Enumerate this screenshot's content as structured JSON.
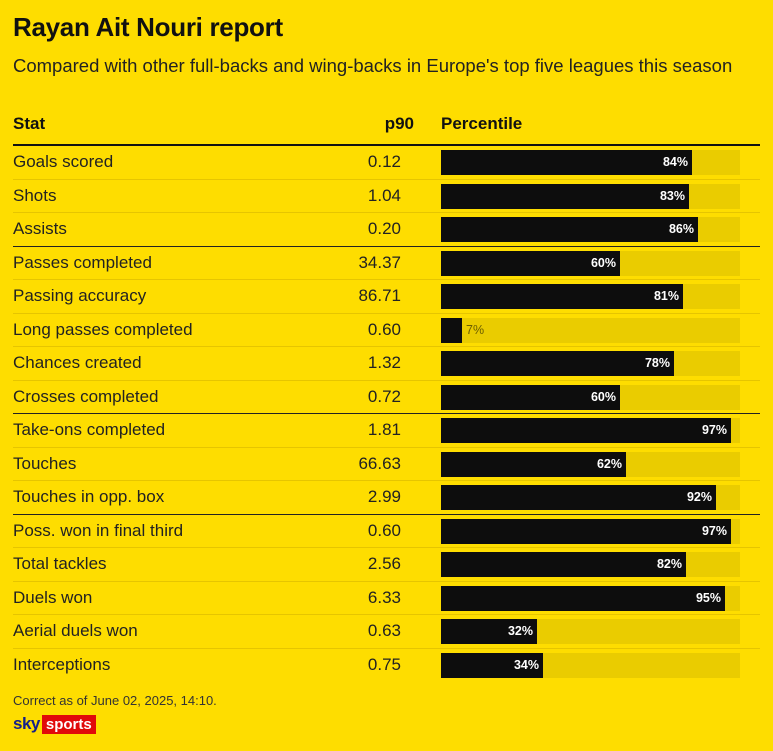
{
  "title": "Rayan Ait Nouri report",
  "subtitle": "Compared with other full-backs and wing-backs in Europe's top five leagues this season",
  "headers": {
    "stat": "Stat",
    "p90": "p90",
    "percentile": "Percentile"
  },
  "footnote": "Correct as of June 02, 2025, 14:10.",
  "logo": {
    "sky": "sky",
    "sports": "sports"
  },
  "colors": {
    "background": "#FEDD00",
    "bar": "#0d0d0d",
    "track": "#EACC00",
    "logo_red": "#e10a0a",
    "logo_blue": "#14208a"
  },
  "chart_data": {
    "type": "bar",
    "orientation": "horizontal",
    "title": "Rayan Ait Nouri report",
    "subtitle": "Compared with other full-backs and wing-backs in Europe's top five leagues this season",
    "xlim": [
      0,
      100
    ],
    "categories": [
      "Goals scored",
      "Shots",
      "Assists",
      "Passes completed",
      "Passing accuracy",
      "Long passes completed",
      "Chances created",
      "Crosses completed",
      "Take-ons completed",
      "Touches",
      "Touches in opp. box",
      "Poss. won in final third",
      "Total tackles",
      "Duels won",
      "Aerial duels won",
      "Interceptions"
    ],
    "p90": [
      "0.12",
      "1.04",
      "0.20",
      "34.37",
      "86.71",
      "0.60",
      "1.32",
      "0.72",
      "1.81",
      "66.63",
      "2.99",
      "0.60",
      "2.56",
      "6.33",
      "0.63",
      "0.75"
    ],
    "values": [
      84,
      83,
      86,
      60,
      81,
      7,
      78,
      60,
      97,
      62,
      92,
      97,
      82,
      95,
      32,
      34
    ],
    "group_ends": [
      2,
      7,
      10
    ]
  }
}
